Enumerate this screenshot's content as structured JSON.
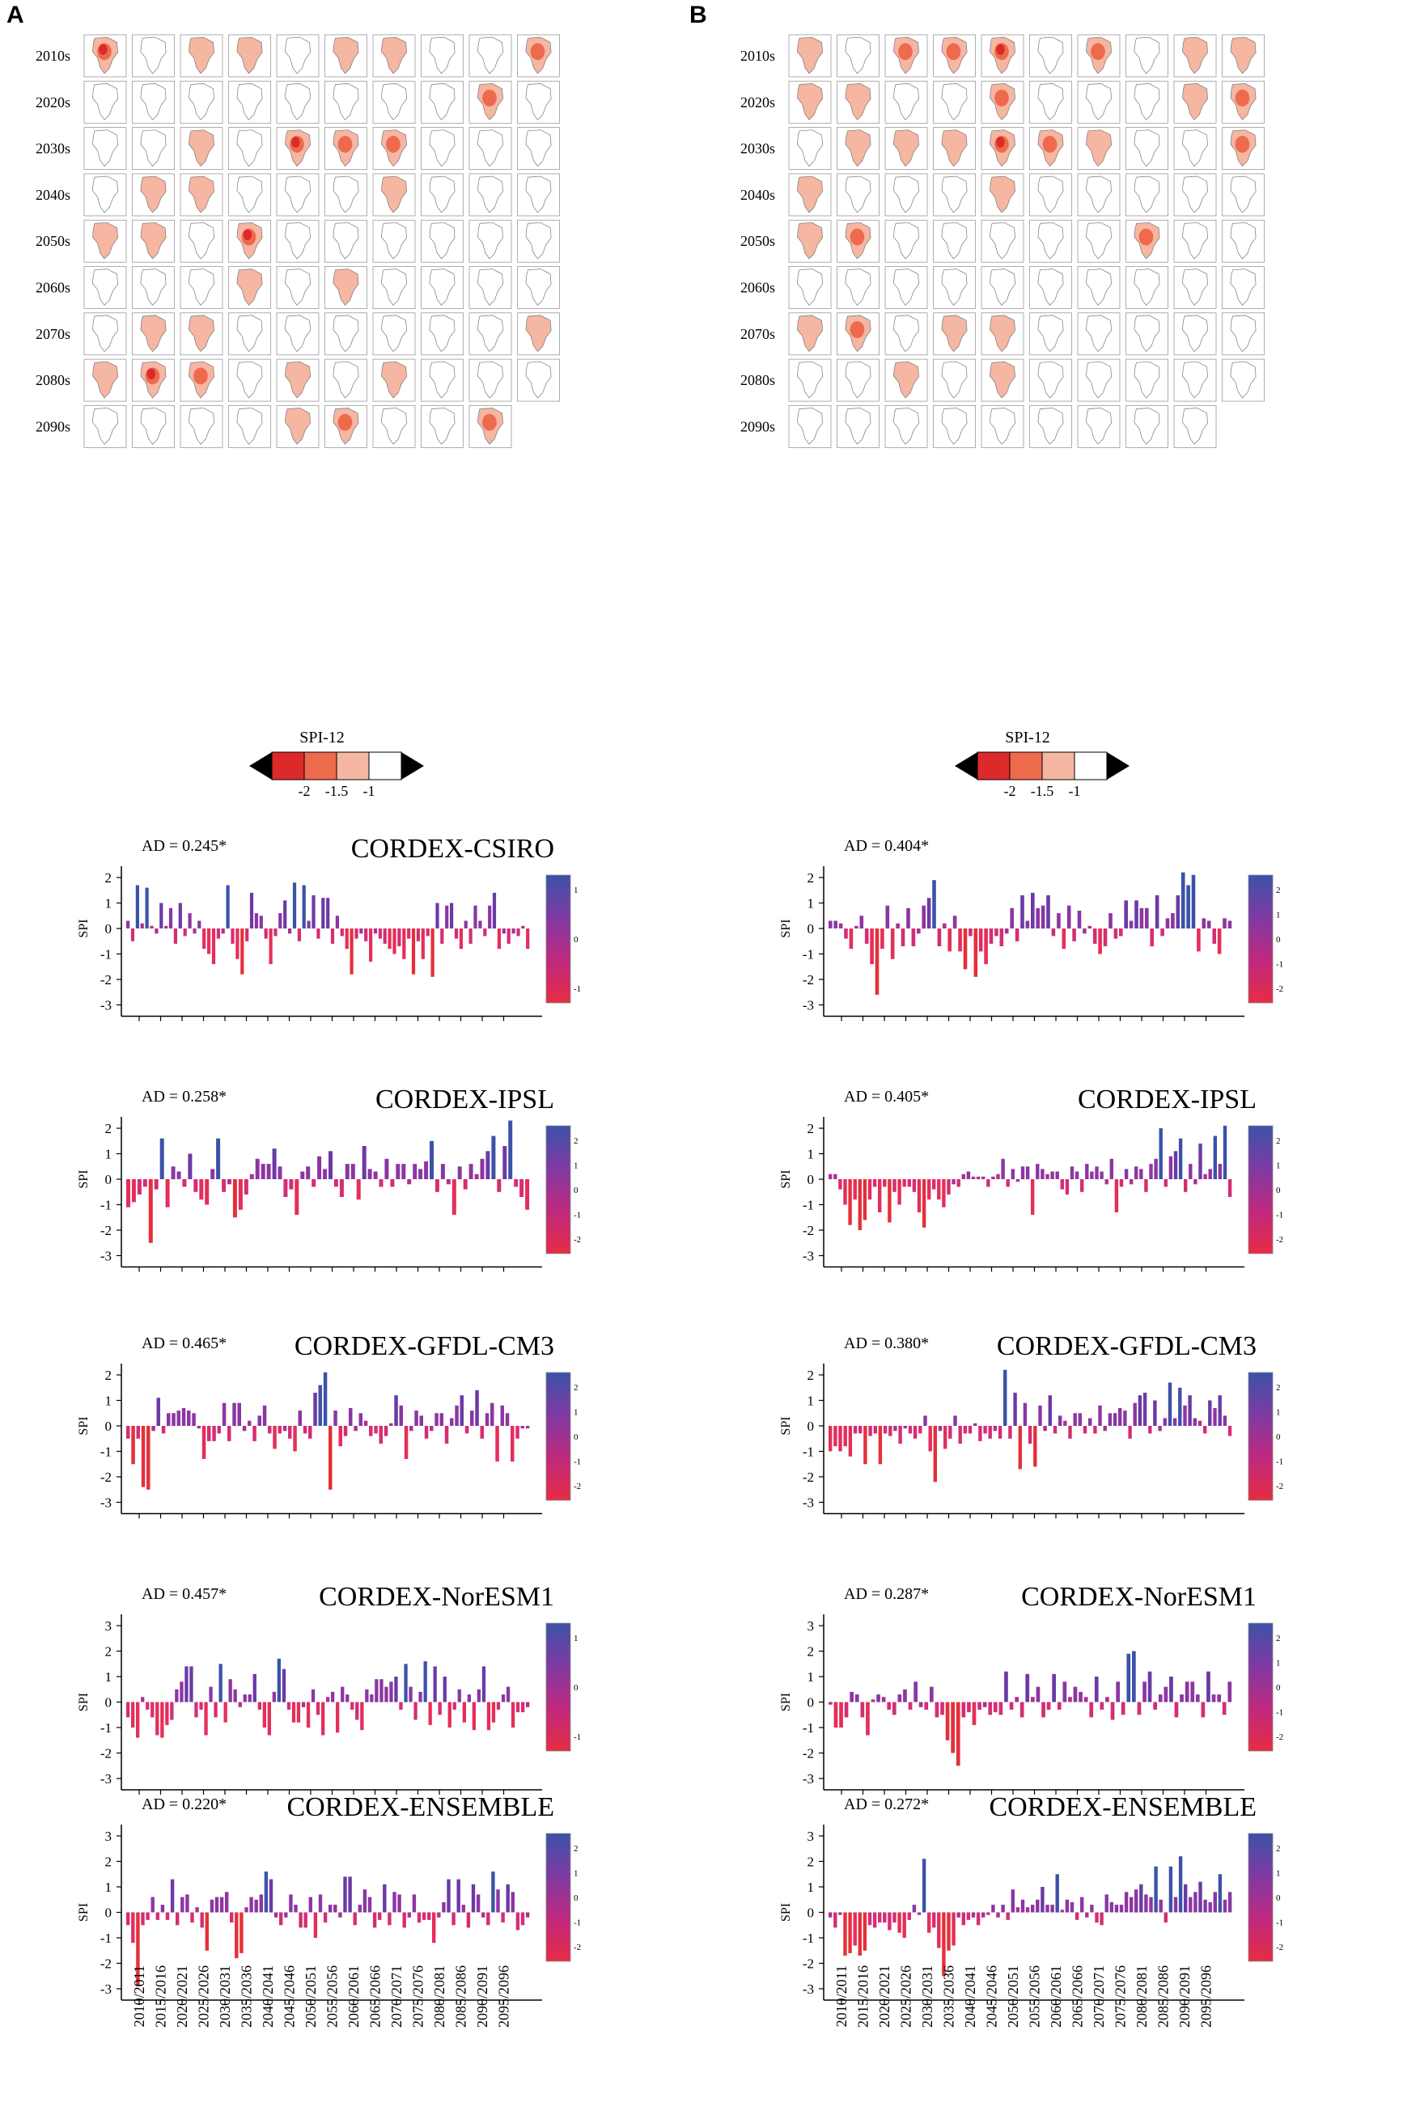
{
  "panels": [
    {
      "letter": "A",
      "label": "A"
    },
    {
      "letter": "B",
      "label": "B"
    }
  ],
  "decade_labels": [
    "2010s",
    "2020s",
    "2030s",
    "2040s",
    "2050s",
    "2060s",
    "2070s",
    "2080s",
    "2090s"
  ],
  "map_grid": {
    "columns_per_decade": 10,
    "last_decade_columns": 9,
    "A_highlights": [
      [
        0,
        0,
        3
      ],
      [
        0,
        2,
        1
      ],
      [
        0,
        3,
        1
      ],
      [
        0,
        5,
        1
      ],
      [
        0,
        6,
        1
      ],
      [
        0,
        9,
        2
      ],
      [
        1,
        8,
        2
      ],
      [
        2,
        2,
        1
      ],
      [
        2,
        4,
        3
      ],
      [
        2,
        5,
        2
      ],
      [
        2,
        6,
        2
      ],
      [
        3,
        1,
        1
      ],
      [
        3,
        2,
        1
      ],
      [
        3,
        6,
        1
      ],
      [
        4,
        0,
        1
      ],
      [
        4,
        1,
        1
      ],
      [
        4,
        3,
        3
      ],
      [
        5,
        3,
        1
      ],
      [
        5,
        5,
        1
      ],
      [
        6,
        1,
        1
      ],
      [
        6,
        2,
        1
      ],
      [
        6,
        9,
        1
      ],
      [
        7,
        0,
        1
      ],
      [
        7,
        1,
        3
      ],
      [
        7,
        2,
        2
      ],
      [
        7,
        4,
        1
      ],
      [
        7,
        6,
        1
      ],
      [
        8,
        4,
        1
      ],
      [
        8,
        5,
        2
      ],
      [
        8,
        8,
        2
      ]
    ],
    "B_highlights": [
      [
        0,
        0,
        1
      ],
      [
        0,
        2,
        2
      ],
      [
        0,
        3,
        2
      ],
      [
        0,
        4,
        3
      ],
      [
        0,
        6,
        2
      ],
      [
        0,
        8,
        1
      ],
      [
        0,
        9,
        1
      ],
      [
        1,
        0,
        1
      ],
      [
        1,
        1,
        1
      ],
      [
        1,
        4,
        2
      ],
      [
        1,
        8,
        1
      ],
      [
        1,
        9,
        2
      ],
      [
        2,
        1,
        1
      ],
      [
        2,
        2,
        1
      ],
      [
        2,
        3,
        1
      ],
      [
        2,
        4,
        3
      ],
      [
        2,
        5,
        2
      ],
      [
        2,
        6,
        1
      ],
      [
        2,
        9,
        2
      ],
      [
        3,
        0,
        1
      ],
      [
        3,
        4,
        1
      ],
      [
        4,
        0,
        1
      ],
      [
        4,
        1,
        2
      ],
      [
        4,
        7,
        2
      ],
      [
        6,
        0,
        1
      ],
      [
        6,
        1,
        2
      ],
      [
        6,
        3,
        1
      ],
      [
        6,
        4,
        1
      ],
      [
        7,
        2,
        1
      ],
      [
        7,
        4,
        1
      ]
    ]
  },
  "legend": {
    "title": "SPI-12",
    "tick_labels": [
      "-2",
      "-1.5",
      "-1"
    ],
    "colors": [
      "#000000",
      "#dc2a2a",
      "#ee6a4c",
      "#f5b6a2",
      "#ffffff",
      "#000000"
    ]
  },
  "colorbar": {
    "stops": [
      "#3c52a8",
      "#7e3aa3",
      "#c0297e",
      "#e62c43"
    ],
    "label_sets": {
      "small": [
        "1",
        "0",
        "-1"
      ],
      "large": [
        "2",
        "1",
        "0",
        "-1",
        "-2"
      ]
    }
  },
  "time_periods": [
    "2010/2011",
    "2015/2016",
    "2020/2021",
    "2025/2026",
    "2030/2031",
    "2035/2036",
    "2040/2041",
    "2045/2046",
    "2050/2051",
    "2055/2056",
    "2060/2061",
    "2065/2066",
    "2070/2071",
    "2075/2076",
    "2080/2081",
    "2085/2086",
    "2090/2091",
    "2095/2096"
  ],
  "chart_data": [
    {
      "type": "bar",
      "panel": "A",
      "title": "CORDEX-CSIRO",
      "annotation": "AD = 0.245*",
      "ylabel": "SPI",
      "ylim": [
        -3,
        2
      ],
      "yticks": [
        2,
        1,
        0,
        -1,
        -2,
        -3
      ],
      "colorbar_labels": "small",
      "values": [
        0.3,
        -0.5,
        1.7,
        0.2,
        1.6,
        0.1,
        -0.2,
        1.0,
        0.1,
        0.8,
        -0.6,
        1.0,
        -0.3,
        0.6,
        -0.2,
        0.3,
        -0.8,
        -1.0,
        -1.4,
        -0.4,
        -0.2,
        1.7,
        -0.6,
        -1.2,
        -1.8,
        -0.5,
        1.4,
        0.6,
        0.5,
        -0.4,
        -1.4,
        -0.3,
        0.6,
        1.1,
        -0.2,
        1.8,
        -0.5,
        1.7,
        0.3,
        1.3,
        -0.4,
        1.2,
        1.2,
        -0.6,
        0.5,
        -0.3,
        -0.8,
        -1.8,
        -0.4,
        -0.2,
        -0.5,
        -1.3,
        -0.2,
        -0.4,
        -0.6,
        -0.8,
        -1.0,
        -0.7,
        -1.2,
        -0.4,
        -1.8,
        -0.5,
        -1.2,
        -0.3,
        -1.9,
        1.0,
        -0.6,
        0.9,
        1.0,
        -0.4,
        -0.8,
        0.3,
        -0.6,
        0.9,
        0.3,
        -0.3,
        0.9,
        1.4,
        -0.8,
        -0.2,
        -0.6,
        -0.2,
        -0.3,
        0.1,
        -0.8
      ]
    },
    {
      "type": "bar",
      "panel": "B",
      "title": "",
      "annotation": "AD = 0.404*",
      "ylabel": "SPI",
      "ylim": [
        -3,
        2
      ],
      "yticks": [
        2,
        1,
        0,
        -1,
        -2,
        -3
      ],
      "colorbar_labels": "large",
      "values": [
        0.3,
        0.3,
        0.2,
        -0.4,
        -0.8,
        0.1,
        0.5,
        -0.6,
        -1.4,
        -2.6,
        -0.8,
        0.9,
        -1.2,
        0.2,
        -0.7,
        0.8,
        -0.7,
        -0.2,
        0.9,
        1.2,
        1.9,
        -0.7,
        0.2,
        -0.9,
        0.5,
        -0.9,
        -1.6,
        -0.3,
        -1.9,
        -0.9,
        -1.4,
        -0.6,
        -0.3,
        -0.7,
        -0.2,
        0.8,
        -0.5,
        1.3,
        0.3,
        1.4,
        0.8,
        0.9,
        1.3,
        -0.3,
        0.6,
        -0.8,
        0.9,
        -0.5,
        0.7,
        -0.2,
        0.1,
        -0.6,
        -1.0,
        -0.7,
        0.6,
        -0.4,
        -0.3,
        1.1,
        0.3,
        1.1,
        0.8,
        0.8,
        -0.7,
        1.3,
        -0.3,
        0.4,
        0.6,
        1.3,
        2.2,
        1.7,
        2.1,
        -0.9,
        0.4,
        0.3,
        -0.6,
        -1.0,
        0.4,
        0.3
      ]
    },
    {
      "type": "bar",
      "panel": "A",
      "title": "CORDEX-IPSL",
      "annotation": "AD = 0.258*",
      "ylabel": "SPI",
      "ylim": [
        -3,
        2
      ],
      "yticks": [
        2,
        1,
        0,
        -1,
        -2,
        -3
      ],
      "colorbar_labels": "large",
      "values": [
        -1.1,
        -0.9,
        -0.6,
        -0.3,
        -2.5,
        -0.4,
        1.6,
        -1.1,
        0.5,
        0.3,
        -0.3,
        1.0,
        -0.5,
        -0.8,
        -1.0,
        0.4,
        1.6,
        -0.5,
        -0.2,
        -1.5,
        -1.2,
        -0.6,
        0.2,
        0.8,
        0.6,
        0.6,
        1.2,
        0.5,
        -0.7,
        -0.4,
        -1.4,
        0.3,
        0.5,
        -0.3,
        0.9,
        0.4,
        1.1,
        -0.3,
        -0.7,
        0.6,
        0.6,
        -0.8,
        1.3,
        0.4,
        0.3,
        -0.3,
        0.8,
        -0.3,
        0.6,
        0.6,
        -0.2,
        0.6,
        0.4,
        0.7,
        1.5,
        -0.5,
        0.6,
        -0.2,
        -1.4,
        0.5,
        -0.4,
        0.6,
        0.2,
        0.8,
        1.1,
        1.7,
        -0.5,
        1.3,
        2.3,
        -0.3,
        -0.7,
        -1.2
      ]
    },
    {
      "type": "bar",
      "panel": "B",
      "title": "CORDEX-IPSL",
      "annotation": "AD = 0.405*",
      "ylabel": "SPI",
      "ylim": [
        -3,
        2
      ],
      "yticks": [
        2,
        1,
        0,
        -1,
        -2,
        -3
      ],
      "colorbar_labels": "large",
      "values": [
        0.2,
        0.2,
        -0.4,
        -1.0,
        -1.8,
        -0.8,
        -2.0,
        -1.6,
        -0.8,
        -0.3,
        -1.3,
        -0.3,
        -1.7,
        -0.5,
        -1.0,
        -0.3,
        -0.3,
        -0.5,
        -1.3,
        -1.9,
        -0.8,
        -0.4,
        -0.8,
        -1.1,
        -0.6,
        -0.2,
        -0.3,
        0.2,
        0.3,
        0.1,
        0.1,
        0.1,
        -0.3,
        0.1,
        0.2,
        0.8,
        -0.3,
        0.4,
        -0.1,
        0.5,
        0.5,
        -1.4,
        0.6,
        0.4,
        0.2,
        0.3,
        0.3,
        -0.4,
        -0.6,
        0.5,
        0.3,
        -0.5,
        0.6,
        0.3,
        0.5,
        0.3,
        -0.2,
        0.8,
        -1.3,
        -0.3,
        0.4,
        -0.2,
        0.5,
        0.4,
        -0.5,
        0.6,
        0.8,
        2.0,
        -0.3,
        0.9,
        1.1,
        1.6,
        -0.5,
        0.6,
        -0.2,
        1.4,
        0.2,
        0.4,
        1.7,
        0.6,
        2.1,
        -0.7
      ]
    },
    {
      "type": "bar",
      "panel": "A",
      "title": "CORDEX-GFDL-CM3",
      "annotation": "AD = 0.465*",
      "ylabel": "SPI",
      "ylim": [
        -3,
        2
      ],
      "yticks": [
        2,
        1,
        0,
        -1,
        -2,
        -3
      ],
      "colorbar_labels": "large",
      "values": [
        -0.5,
        -1.5,
        -0.5,
        -2.4,
        -2.5,
        -0.2,
        1.1,
        -0.3,
        0.5,
        0.5,
        0.6,
        0.7,
        0.6,
        0.5,
        -0.1,
        -1.3,
        -0.6,
        -0.6,
        -0.3,
        0.9,
        -0.6,
        0.9,
        0.9,
        -0.2,
        0.2,
        -0.6,
        0.4,
        0.8,
        -0.3,
        -0.9,
        -0.3,
        -0.2,
        -0.5,
        -1.0,
        0.6,
        -0.3,
        -0.5,
        1.3,
        1.6,
        2.1,
        -2.5,
        0.6,
        -0.8,
        -0.4,
        0.7,
        -0.2,
        0.5,
        0.2,
        -0.4,
        -0.3,
        -0.7,
        -0.4,
        0.1,
        1.2,
        0.8,
        -1.3,
        -0.2,
        0.6,
        0.4,
        -0.5,
        -0.2,
        0.5,
        0.5,
        -0.7,
        0.3,
        0.8,
        1.2,
        -0.3,
        0.6,
        1.4,
        -0.5,
        0.5,
        0.9,
        -1.4,
        0.8,
        0.5,
        -1.4,
        -0.5,
        -0.1,
        -0.1
      ]
    },
    {
      "type": "bar",
      "panel": "B",
      "title": "CORDEX-GFDL-CM3",
      "annotation": "AD = 0.380*",
      "ylabel": "SPI",
      "ylim": [
        -3,
        2
      ],
      "yticks": [
        2,
        1,
        0,
        -1,
        -2,
        -3
      ],
      "colorbar_labels": "large",
      "values": [
        -1.0,
        -0.8,
        -1.0,
        -0.8,
        -1.2,
        -0.3,
        -0.3,
        -1.5,
        -0.4,
        -0.3,
        -1.5,
        -0.3,
        -0.4,
        -0.2,
        -0.7,
        -0.1,
        -0.3,
        -0.5,
        -0.3,
        0.4,
        -1.0,
        -2.2,
        -0.2,
        -0.9,
        -0.5,
        0.4,
        -0.7,
        -0.3,
        -0.3,
        0.1,
        -0.6,
        -0.3,
        -0.5,
        -0.2,
        -0.5,
        2.2,
        -0.5,
        1.3,
        -1.7,
        0.9,
        -0.7,
        -1.6,
        0.8,
        -0.2,
        1.2,
        -0.3,
        0.4,
        0.2,
        -0.5,
        0.5,
        0.5,
        -0.3,
        0.3,
        -0.3,
        0.8,
        -0.2,
        0.5,
        0.5,
        0.7,
        0.6,
        -0.5,
        0.9,
        1.2,
        1.3,
        -0.3,
        1.0,
        -0.2,
        0.3,
        1.7,
        0.3,
        1.5,
        0.8,
        1.2,
        0.3,
        0.2,
        -0.3,
        1.0,
        0.7,
        1.2,
        0.4,
        -0.4
      ]
    },
    {
      "type": "bar",
      "panel": "A",
      "title": "CORDEX-NorESM1",
      "annotation": "AD = 0.457*",
      "ylabel": "SPI",
      "ylim": [
        -3,
        3
      ],
      "yticks": [
        3,
        2,
        1,
        0,
        -1,
        -2,
        -3
      ],
      "colorbar_labels": "small",
      "values": [
        -0.6,
        -1.0,
        -1.4,
        0.2,
        -0.3,
        -0.6,
        -1.3,
        -1.4,
        -0.9,
        -0.7,
        0.5,
        0.8,
        1.4,
        1.4,
        -0.6,
        -0.3,
        -1.3,
        0.6,
        -0.6,
        1.5,
        -0.8,
        0.9,
        0.5,
        -0.2,
        0.3,
        0.3,
        1.1,
        -0.3,
        -1.0,
        -1.3,
        0.4,
        1.7,
        1.3,
        -0.3,
        -0.8,
        -0.8,
        -0.2,
        -1.0,
        0.5,
        -0.5,
        -1.3,
        0.2,
        0.4,
        -1.2,
        0.6,
        0.3,
        -0.3,
        -0.7,
        -1.1,
        0.5,
        0.3,
        0.9,
        0.9,
        0.6,
        0.8,
        1.0,
        -0.3,
        1.5,
        0.6,
        -0.7,
        0.4,
        1.6,
        -0.9,
        1.4,
        -0.5,
        1.0,
        -1.0,
        -0.3,
        0.5,
        -0.8,
        0.3,
        -1.1,
        0.5,
        1.4,
        -1.1,
        -0.8,
        -0.3,
        0.3,
        0.6,
        -1.0,
        -0.4,
        -0.4,
        -0.2
      ]
    },
    {
      "type": "bar",
      "panel": "B",
      "title": "CORDEX-NorESM1",
      "annotation": "AD = 0.287*",
      "ylabel": "SPI",
      "ylim": [
        -3,
        3
      ],
      "yticks": [
        3,
        2,
        1,
        0,
        -1,
        -2,
        -3
      ],
      "colorbar_labels": "large",
      "values": [
        -0.1,
        -1.0,
        -1.0,
        -0.6,
        0.4,
        0.3,
        -0.6,
        -1.3,
        0.1,
        0.3,
        0.2,
        -0.3,
        -0.5,
        0.3,
        0.5,
        -0.3,
        0.8,
        -0.2,
        -0.3,
        0.6,
        -0.6,
        -0.5,
        -1.5,
        -2.0,
        -2.5,
        -0.6,
        -0.4,
        -0.9,
        -0.3,
        -0.2,
        -0.5,
        -0.4,
        -0.5,
        1.2,
        -0.3,
        0.2,
        -0.6,
        1.1,
        0.2,
        0.6,
        -0.6,
        -0.3,
        1.1,
        -0.3,
        0.8,
        0.2,
        0.6,
        0.4,
        0.2,
        -0.6,
        1.0,
        -0.3,
        0.2,
        -0.7,
        0.8,
        -0.5,
        1.9,
        2.0,
        -0.5,
        0.8,
        1.2,
        -0.3,
        0.3,
        0.6,
        1.0,
        -0.6,
        0.3,
        0.8,
        0.8,
        0.3,
        -0.6,
        1.2,
        0.3,
        0.3,
        -0.5,
        0.8
      ]
    },
    {
      "type": "bar",
      "panel": "A",
      "title": "CORDEX-ENSEMBLE",
      "annotation": "AD = 0.220*",
      "ylabel": "SPI",
      "ylim": [
        -3,
        3
      ],
      "yticks": [
        3,
        2,
        1,
        0,
        -1,
        -2,
        -3
      ],
      "colorbar_labels": "large",
      "values": [
        -0.5,
        -1.2,
        -2.9,
        -0.5,
        -0.3,
        0.6,
        -0.3,
        0.3,
        -0.3,
        1.3,
        -0.5,
        0.6,
        0.7,
        -0.4,
        0.2,
        -0.6,
        -1.5,
        0.5,
        0.6,
        0.6,
        0.8,
        -0.4,
        -1.8,
        -1.6,
        0.2,
        0.6,
        0.5,
        0.7,
        1.6,
        1.3,
        -0.2,
        -0.5,
        -0.2,
        0.7,
        0.3,
        -0.6,
        -0.6,
        0.6,
        -1.0,
        0.7,
        -0.4,
        0.3,
        0.3,
        -0.2,
        1.4,
        1.4,
        -0.5,
        0.3,
        0.9,
        0.6,
        -0.6,
        -0.3,
        1.1,
        -0.5,
        0.8,
        0.7,
        -0.6,
        -0.2,
        0.7,
        -0.4,
        -0.3,
        -0.3,
        -1.2,
        -0.2,
        0.4,
        1.3,
        -0.5,
        1.3,
        0.3,
        -0.6,
        1.1,
        0.7,
        -0.2,
        -0.5,
        1.6,
        0.9,
        -0.4,
        1.1,
        0.8,
        -0.7,
        -0.5,
        -0.2
      ]
    },
    {
      "type": "bar",
      "panel": "B",
      "title": "CORDEX-ENSEMBLE",
      "annotation": "AD = 0.272*",
      "ylabel": "SPI",
      "ylim": [
        -3,
        3
      ],
      "yticks": [
        3,
        2,
        1,
        0,
        -1,
        -2,
        -3
      ],
      "colorbar_labels": "large",
      "values": [
        -0.2,
        -0.6,
        -0.1,
        -1.7,
        -1.6,
        -1.3,
        -1.7,
        -1.5,
        -0.5,
        -0.6,
        -0.4,
        -0.4,
        -0.7,
        -0.4,
        -0.8,
        -1.0,
        -0.3,
        0.3,
        -0.1,
        2.1,
        -0.8,
        -0.6,
        -1.4,
        -2.5,
        -1.5,
        -1.3,
        -0.2,
        -0.5,
        -0.3,
        -0.2,
        -0.5,
        -0.2,
        -0.1,
        0.3,
        -0.2,
        0.3,
        -0.3,
        0.9,
        0.2,
        0.5,
        0.2,
        0.3,
        0.5,
        1.0,
        0.3,
        0.3,
        1.5,
        0.1,
        0.5,
        0.4,
        -0.3,
        0.6,
        -0.2,
        0.3,
        -0.4,
        -0.5,
        0.7,
        0.4,
        0.3,
        0.3,
        0.8,
        0.6,
        0.9,
        1.1,
        0.7,
        0.6,
        1.8,
        0.5,
        -0.4,
        1.8,
        0.6,
        2.2,
        1.1,
        0.6,
        0.8,
        1.2,
        0.5,
        0.4,
        0.8,
        1.5,
        0.5,
        0.8
      ]
    }
  ]
}
